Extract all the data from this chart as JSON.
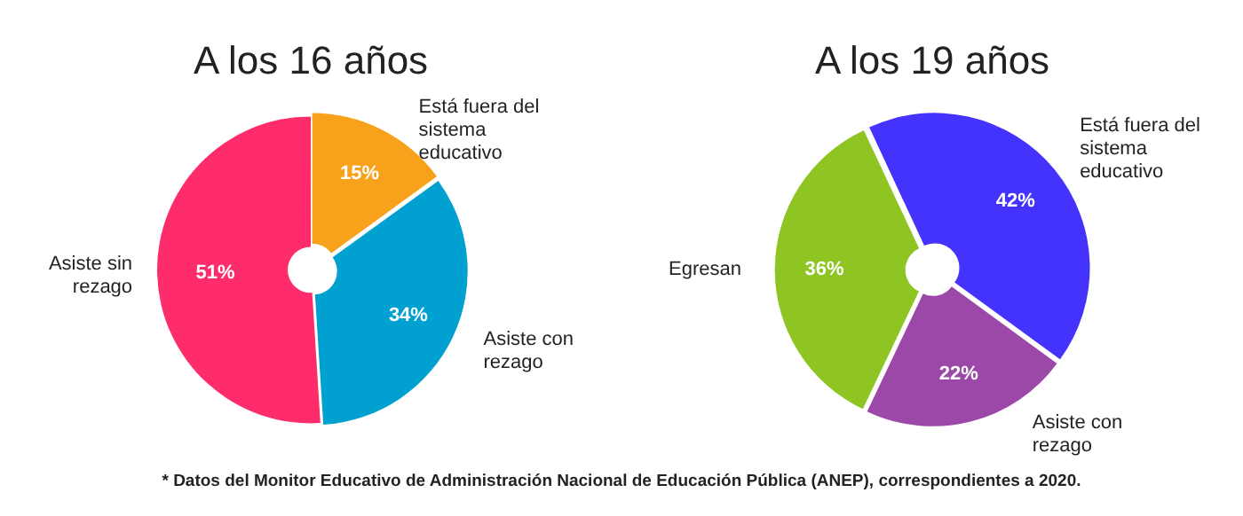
{
  "chart_data": [
    {
      "type": "donut",
      "title": "A los 16 años",
      "categories": [
        "Está fuera del sistema educativo",
        "Asiste con rezago",
        "Asiste sin rezago"
      ],
      "values": [
        15,
        34,
        51
      ],
      "value_labels": [
        "15%",
        "34%",
        "51%"
      ],
      "colors": [
        "#f8a21c",
        "#00a1d0",
        "#fe2c6b"
      ],
      "data_labels": true,
      "legend": false
    },
    {
      "type": "donut",
      "title": "A los 19 años",
      "categories": [
        "Está fuera del sistema educativo",
        "Asiste con rezago",
        "Egresan"
      ],
      "values": [
        42,
        22,
        36
      ],
      "value_labels": [
        "42%",
        "22%",
        "36%"
      ],
      "colors": [
        "#4433fd",
        "#9c48a9",
        "#8ec523"
      ],
      "data_labels": true,
      "legend": false,
      "annotations": [
        "* Datos del Monitor Educativo de Administración Nacional de Educación Pública (ANEP), correspondientes a 2020."
      ]
    }
  ]
}
